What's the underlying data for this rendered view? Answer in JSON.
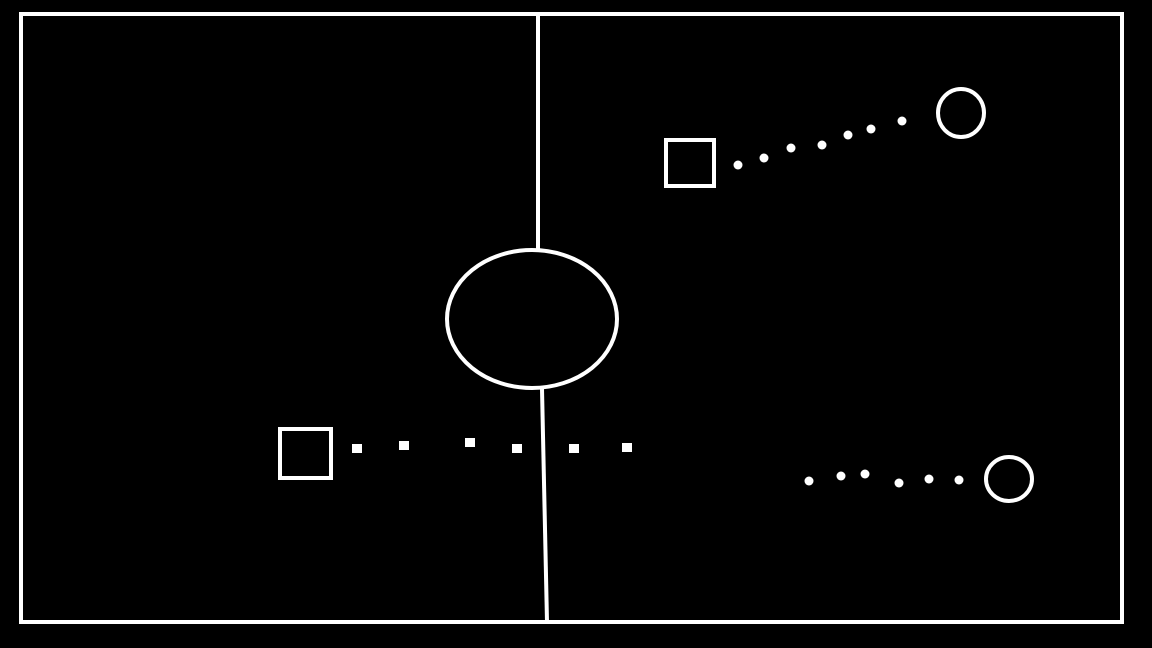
{
  "colors": {
    "background": "#000000",
    "stroke": "#ffffff"
  },
  "field": {
    "shape": "rectangle",
    "center_circle": "ellipse",
    "halfway_line": "vertical"
  },
  "players": [
    {
      "id": "square-top",
      "shape": "square",
      "trail_dot_count": 7,
      "trail_marker": "circle"
    },
    {
      "id": "circle-top",
      "shape": "circle"
    },
    {
      "id": "square-bottom",
      "shape": "square",
      "trail_dot_count": 6,
      "trail_marker": "square"
    },
    {
      "id": "circle-bottom",
      "shape": "circle",
      "trail_dot_count": 6,
      "trail_marker": "circle"
    }
  ]
}
